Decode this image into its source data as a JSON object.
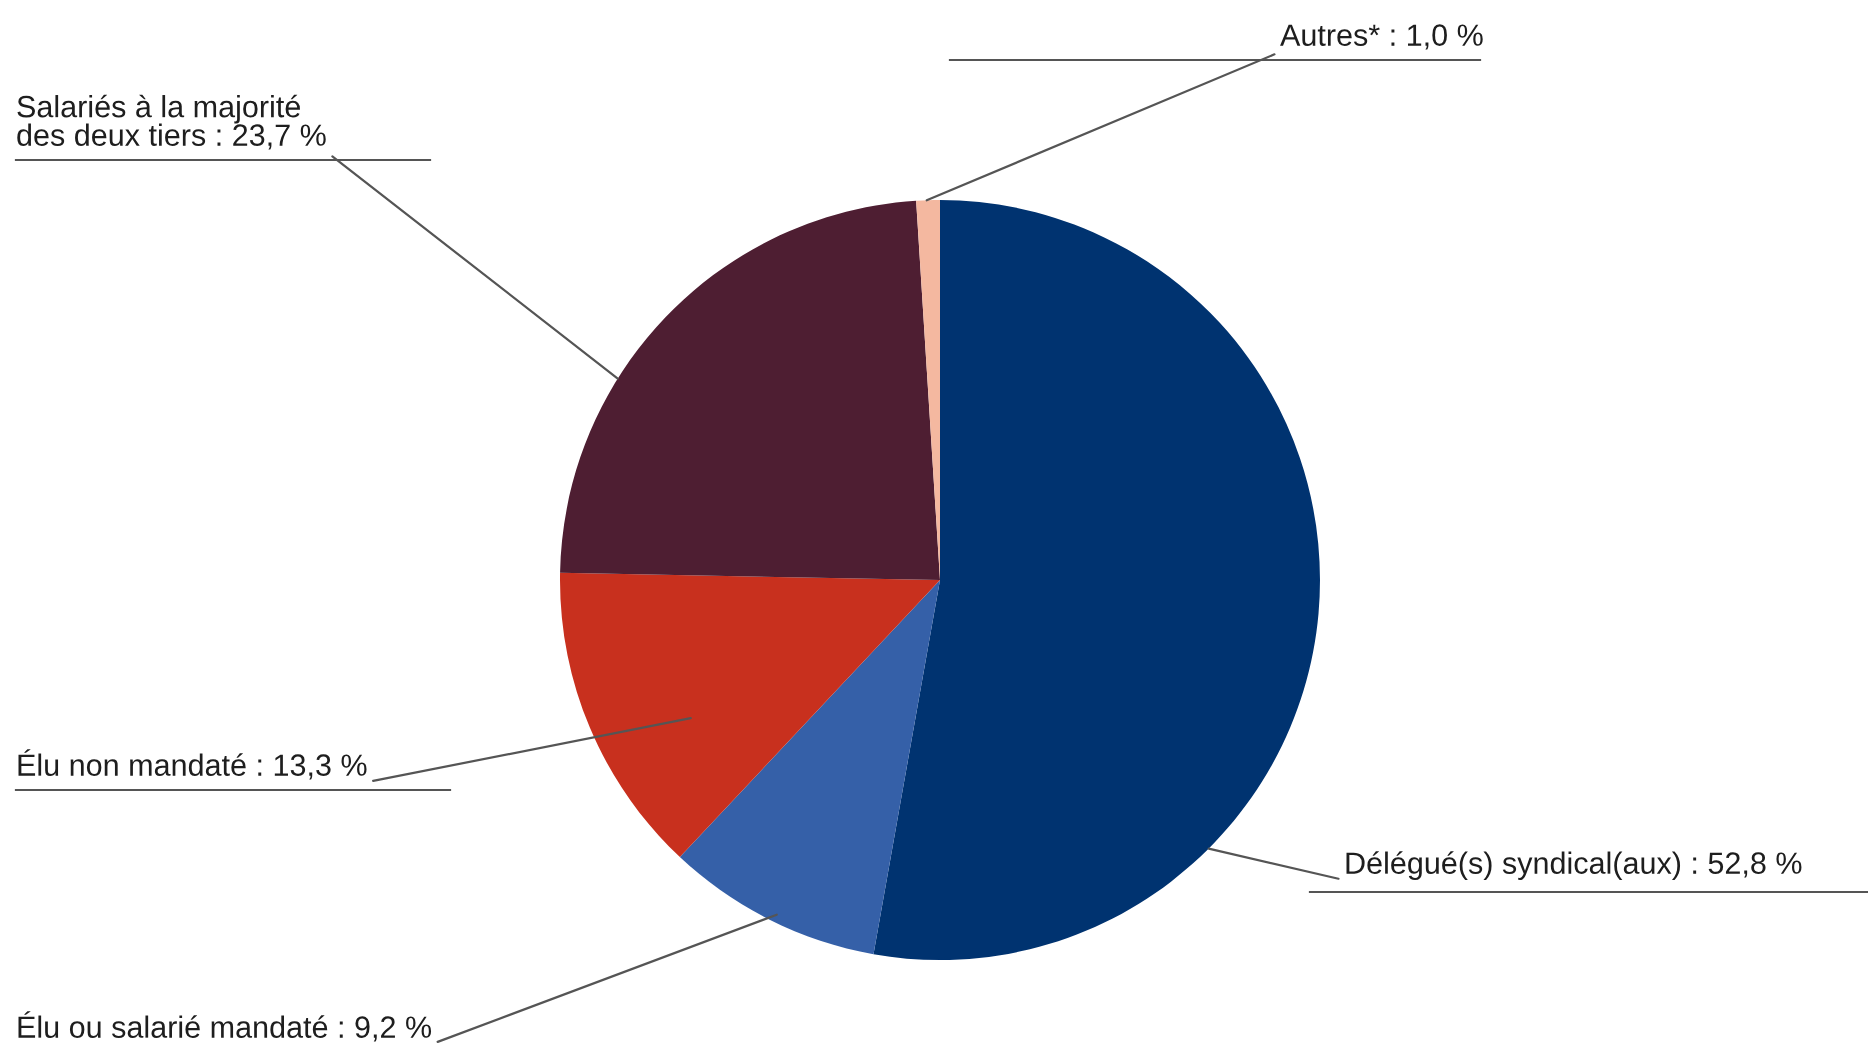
{
  "chart_data": {
    "type": "pie",
    "categories": [
      "Délégué(s) syndical(aux)",
      "Élu ou salarié mandaté",
      "Élu non mandaté",
      "Salariés à la majorité\ndes deux tiers",
      "Autres*"
    ],
    "values": [
      52.8,
      9.2,
      13.3,
      23.7,
      1.0
    ],
    "value_labels": [
      "52,8 %",
      "9,2 %",
      "13,3 %",
      "23,7 %",
      "1,0 %"
    ],
    "colors": [
      "#003370",
      "#3560a8",
      "#c8301e",
      "#4e1e32",
      "#f4b8a0"
    ],
    "legend": false
  }
}
